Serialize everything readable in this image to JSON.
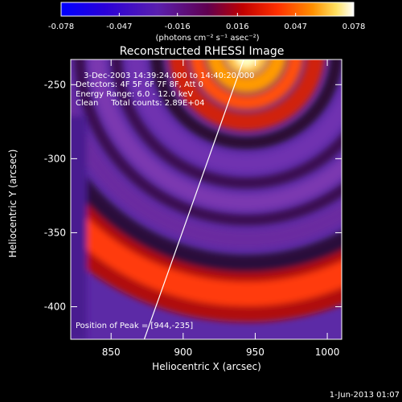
{
  "colorbar": {
    "ticks": [
      "-0.078",
      "-0.047",
      "-0.016",
      "0.016",
      "0.047",
      "0.078"
    ],
    "unit": "(photons cm⁻² s⁻¹ asec⁻²)",
    "range": [
      -0.078,
      0.078
    ]
  },
  "annotations": {
    "time": "3-Dec-2003 14:39:24.000 to 14:40:20.000",
    "detectors": "Detectors: 4F 5F 6F 7F 8F, Att 0",
    "energy": "Energy Range: 6.0 - 12.0 keV",
    "clean": "Clean     Total counts: 2.89E+04",
    "peak": "Position of Peak = [944,-235]"
  },
  "footer": {
    "date": "1-Jun-2013 01:07"
  },
  "chart_data": {
    "type": "heatmap",
    "title": "Reconstructed RHESSI Image",
    "xlabel": "Heliocentric X (arcsec)",
    "ylabel": "Heliocentric Y (arcsec)",
    "xlim": [
      822,
      1010
    ],
    "ylim": [
      -422,
      -233
    ],
    "xticks": [
      850,
      900,
      950,
      1000
    ],
    "yticks": [
      -250,
      -300,
      -350,
      -400
    ],
    "peak": [
      944,
      -235
    ],
    "limb_line": {
      "x": [
        873,
        942
      ],
      "y": [
        -422,
        -233
      ]
    }
  }
}
